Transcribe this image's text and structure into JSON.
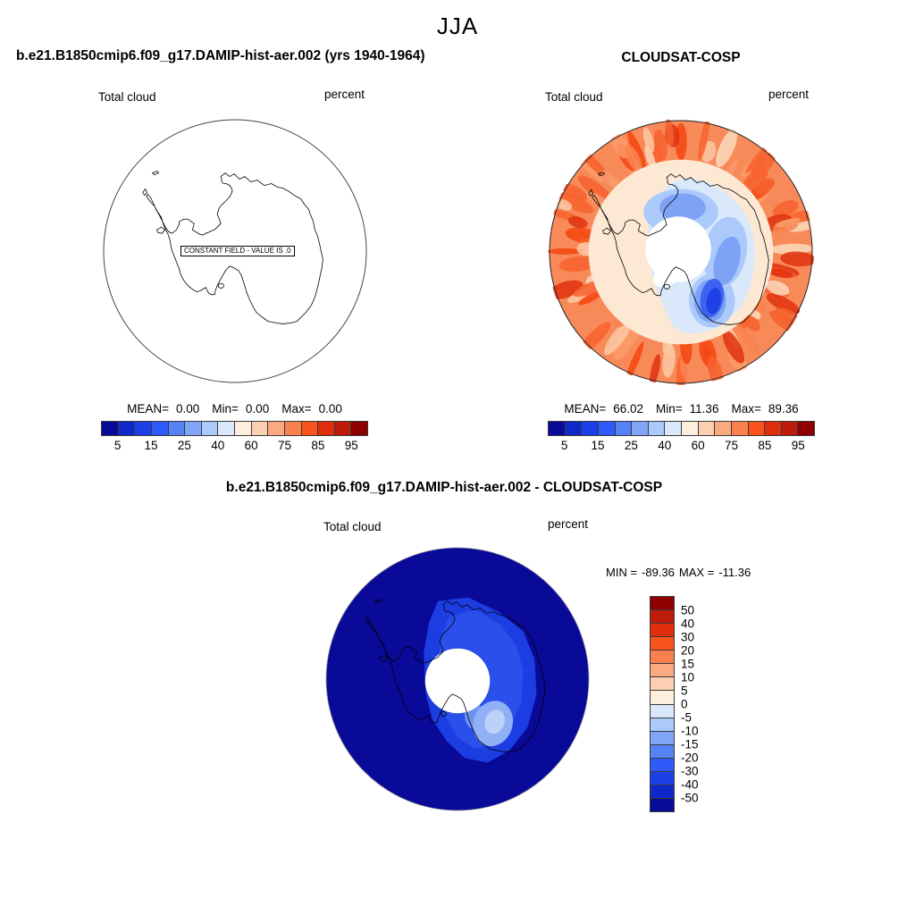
{
  "title": "JJA",
  "palette": [
    "#0a0a99",
    "#1128c8",
    "#1c40e8",
    "#2e5bfa",
    "#5583f6",
    "#80a6f8",
    "#abc9fa",
    "#d9e9fb",
    "#fdeedd",
    "#fccfb2",
    "#fbaa80",
    "#fa8050",
    "#f9531d",
    "#df2e0e",
    "#bd1c0a",
    "#8e0000"
  ],
  "panels": {
    "model": {
      "header": "b.e21.B1850cmip6.f09_g17.DAMIP-hist-aer.002 (yrs 1940-1964)",
      "field": "Total cloud",
      "units": "percent",
      "note": "CONSTANT FIELD - VALUE IS .0",
      "stats": {
        "mean_label": "MEAN=",
        "mean": "0.00",
        "min_label": "Min=",
        "min": "0.00",
        "max_label": "Max=",
        "max": "0.00"
      },
      "ticks": [
        "5",
        "15",
        "25",
        "40",
        "60",
        "75",
        "85",
        "95"
      ]
    },
    "obs": {
      "header": "CLOUDSAT-COSP",
      "field": "Total cloud",
      "units": "percent",
      "stats": {
        "mean_label": "MEAN=",
        "mean": "66.02",
        "min_label": "Min=",
        "min": "11.36",
        "max_label": "Max=",
        "max": "89.36"
      },
      "ticks": [
        "5",
        "15",
        "25",
        "40",
        "60",
        "75",
        "85",
        "95"
      ]
    },
    "diff": {
      "header": "b.e21.B1850cmip6.f09_g17.DAMIP-hist-aer.002 - CLOUDSAT-COSP",
      "field": "Total cloud",
      "units": "percent",
      "range": {
        "min_label": "MIN =",
        "min": "-89.36",
        "max_label": "MAX =",
        "max": "-11.36"
      },
      "ticks": [
        "50",
        "40",
        "30",
        "20",
        "15",
        "10",
        "5",
        "0",
        "-5",
        "-10",
        "-15",
        "-20",
        "-30",
        "-40",
        "-50"
      ]
    }
  },
  "chart_data": [
    {
      "type": "map_contour",
      "panel": "model",
      "title": "b.e21.B1850cmip6.f09_g17.DAMIP-hist-aer.002 (yrs 1940-1964)",
      "season": "JJA",
      "variable": "Total cloud",
      "units": "percent",
      "projection": "south_polar_stereographic",
      "annotation": "CONSTANT FIELD - VALUE IS .0",
      "field_constant_value": 0.0,
      "stats": {
        "mean": 0.0,
        "min": 0.0,
        "max": 0.0
      },
      "contour_levels": [
        5,
        10,
        15,
        20,
        25,
        30,
        40,
        50,
        60,
        70,
        75,
        80,
        85,
        90,
        95
      ],
      "colorbar_tick_labels": [
        5,
        15,
        25,
        40,
        60,
        75,
        85,
        95
      ],
      "colorbar_orientation": "horizontal"
    },
    {
      "type": "map_contour",
      "panel": "observation",
      "title": "CLOUDSAT-COSP",
      "season": "JJA",
      "variable": "Total cloud",
      "units": "percent",
      "projection": "south_polar_stereographic",
      "stats": {
        "mean": 66.02,
        "min": 11.36,
        "max": 89.36
      },
      "contour_levels": [
        5,
        10,
        15,
        20,
        25,
        30,
        40,
        50,
        60,
        70,
        75,
        80,
        85,
        90,
        95
      ],
      "colorbar_tick_labels": [
        5,
        15,
        25,
        40,
        60,
        75,
        85,
        95
      ],
      "colorbar_orientation": "horizontal",
      "description": "High total cloud (60-90%) over Southern Ocean, low values (11-40%) over East Antarctic interior, data gap circle at pole"
    },
    {
      "type": "map_contour",
      "panel": "difference",
      "title": "b.e21.B1850cmip6.f09_g17.DAMIP-hist-aer.002 - CLOUDSAT-COSP",
      "season": "JJA",
      "variable": "Total cloud",
      "units": "percent",
      "projection": "south_polar_stereographic",
      "stats": {
        "min": -89.36,
        "max": -11.36
      },
      "contour_levels": [
        -50,
        -40,
        -30,
        -20,
        -15,
        -10,
        -5,
        0,
        5,
        10,
        15,
        20,
        30,
        40,
        50
      ],
      "colorbar_tick_labels": [
        50,
        40,
        30,
        20,
        15,
        10,
        5,
        0,
        -5,
        -10,
        -15,
        -20,
        -30,
        -40,
        -50
      ],
      "colorbar_orientation": "vertical",
      "description": "Uniformly negative difference; below -50 over ocean, -20 to -50 over East Antarctic interior"
    }
  ]
}
